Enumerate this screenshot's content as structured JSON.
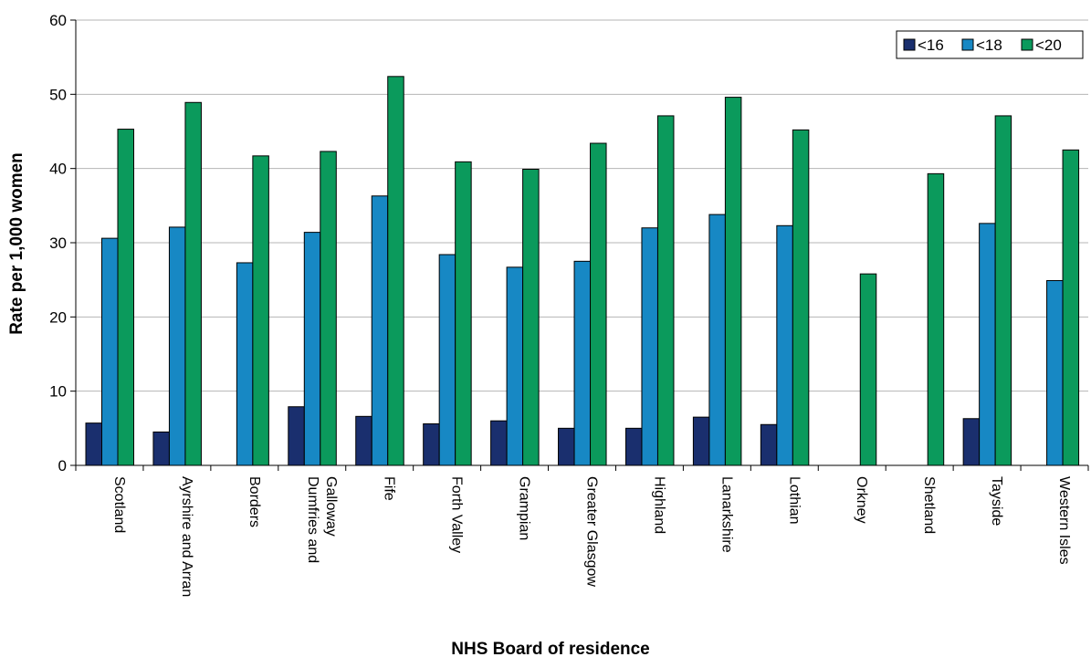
{
  "chart_data": {
    "type": "bar",
    "title": "",
    "xlabel": "NHS Board of residence",
    "ylabel": "Rate per 1,000 women",
    "ylim": [
      0,
      60
    ],
    "yticks": [
      0,
      10,
      20,
      30,
      40,
      50,
      60
    ],
    "grid": true,
    "legend_position": "top-right",
    "categories": [
      "Scotland",
      "Ayrshire and Arran",
      "Borders",
      "Dumfries and Galloway",
      "Fife",
      "Forth Valley",
      "Grampian",
      "Greater Glasgow",
      "Highland",
      "Lanarkshire",
      "Lothian",
      "Orkney",
      "Shetland",
      "Tayside",
      "Western Isles"
    ],
    "category_lines": [
      [
        "Scotland"
      ],
      [
        "Ayrshire and Arran"
      ],
      [
        "Borders"
      ],
      [
        "Dumfries and",
        "Galloway"
      ],
      [
        "Fife"
      ],
      [
        "Forth Valley"
      ],
      [
        "Grampian"
      ],
      [
        "Greater Glasgow"
      ],
      [
        "Highland"
      ],
      [
        "Lanarkshire"
      ],
      [
        "Lothian"
      ],
      [
        "Orkney"
      ],
      [
        "Shetland"
      ],
      [
        "Tayside"
      ],
      [
        "Western Isles"
      ]
    ],
    "series": [
      {
        "name": "<16",
        "color": "#1a2f6e",
        "values": [
          5.7,
          4.5,
          null,
          7.9,
          6.6,
          5.6,
          6.0,
          5.0,
          5.0,
          6.5,
          5.5,
          null,
          null,
          6.3,
          null
        ]
      },
      {
        "name": "<18",
        "color": "#1788c4",
        "values": [
          30.6,
          32.1,
          27.3,
          31.4,
          36.3,
          28.4,
          26.7,
          27.5,
          32.0,
          33.8,
          32.3,
          null,
          null,
          32.6,
          24.9
        ]
      },
      {
        "name": "<20",
        "color": "#0b9a5c",
        "values": [
          45.3,
          48.9,
          41.7,
          42.3,
          52.4,
          40.9,
          39.9,
          43.4,
          47.1,
          49.6,
          45.2,
          25.8,
          39.3,
          47.1,
          42.5
        ]
      }
    ]
  }
}
